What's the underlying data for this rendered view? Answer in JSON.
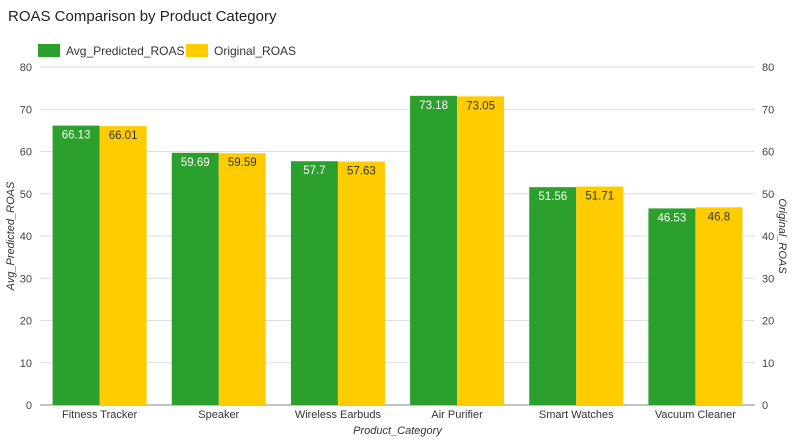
{
  "chart_data": {
    "type": "bar",
    "title": "ROAS Comparison by Product Category",
    "xlabel": "Product_Category",
    "ylabel_left": "Avg_Predicted_ROAS",
    "ylabel_right": "Original_ROAS",
    "categories": [
      "Fitness Tracker",
      "Speaker",
      "Wireless Earbuds",
      "Air Purifier",
      "Smart Watches",
      "Vacuum Cleaner"
    ],
    "series": [
      {
        "name": "Avg_Predicted_ROAS",
        "values": [
          66.13,
          59.69,
          57.7,
          73.18,
          51.56,
          46.53
        ],
        "color": "#2ca02c",
        "label_color": "#ffffff"
      },
      {
        "name": "Original_ROAS",
        "values": [
          66.01,
          59.59,
          57.63,
          73.05,
          51.71,
          46.8
        ],
        "color": "#ffcc00",
        "label_color": "#333333"
      }
    ],
    "ylim": [
      0,
      80
    ],
    "yticks": [
      0,
      10,
      20,
      30,
      40,
      50,
      60,
      70,
      80
    ],
    "value_labels": [
      "66.13",
      "66.01",
      "59.69",
      "59.59",
      "57.7",
      "57.63",
      "73.18",
      "73.05",
      "51.56",
      "51.71",
      "46.53",
      "46.8"
    ],
    "grid": true,
    "legend_position": "top-left",
    "dual_axis": true
  }
}
